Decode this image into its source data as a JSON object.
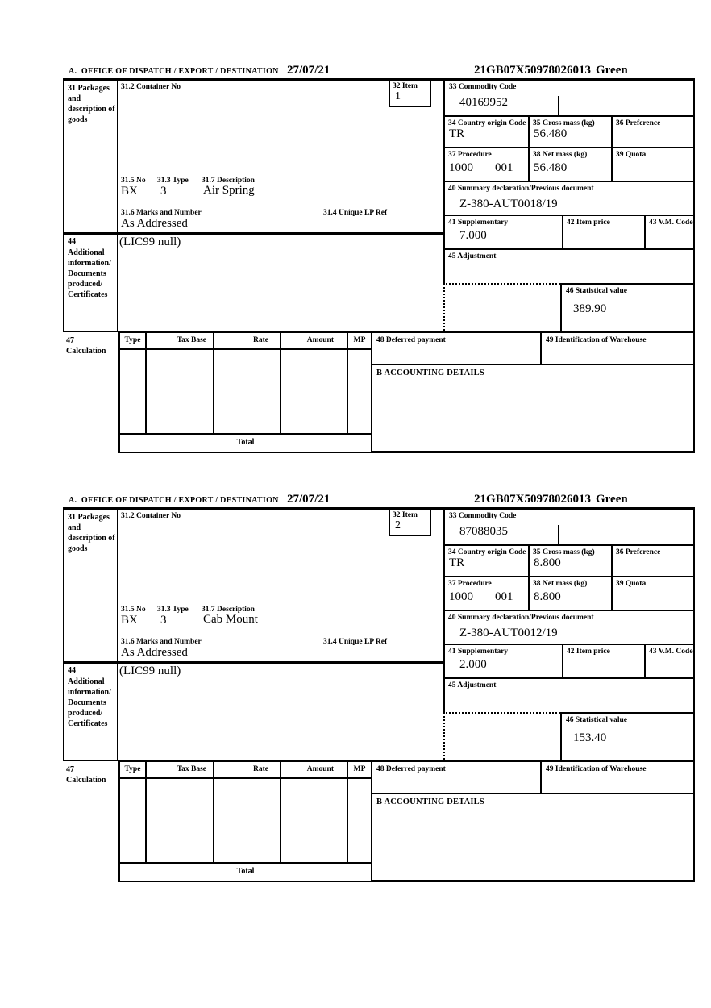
{
  "labels": {
    "office": "A.  OFFICE OF DISPATCH / EXPORT / DESTINATION",
    "box31": "31 Packages and description of goods",
    "box31_2": "31.2 Container No",
    "box32": "32 Item",
    "box33": "33 Commodity Code",
    "box34": "34 Country origin Code",
    "box35": "35 Gross mass (kg)",
    "box36": "36 Preference",
    "box37": "37 Procedure",
    "box38": "38 Net mass (kg)",
    "box39": "39 Quota",
    "box40": "40 Summary declaration/Previous document",
    "box41": "41 Supplementary",
    "box42": "42 Item price",
    "box43": "43 V.M. Code",
    "box31_5": "31.5 No",
    "box31_3": "31.3 Type",
    "box31_7": "31.7 Description",
    "box31_6": "31.6 Marks and Number",
    "box31_4": "31.4 Unique LP Ref",
    "box44_no": "44",
    "box44_text": "Additional information/ Documents produced/ Certificates",
    "box45": "45 Adjustment",
    "box46": "46 Statistical value",
    "box47": "47 Calculation",
    "box48": "48 Deferred payment",
    "box49": "49 Identification of Warehouse",
    "boxB": "B ACCOUNTING DETAILS",
    "calc_type": "Type",
    "calc_tax_base": "Tax Base",
    "calc_rate": "Rate",
    "calc_amount": "Amount",
    "calc_mp": "MP",
    "calc_total": "Total"
  },
  "forms": [
    {
      "date": "27/07/21",
      "mrn": "21GB07X50978026013",
      "routing": "Green",
      "item_no": "1",
      "commodity_code": "40169952",
      "country_origin_code": "TR",
      "gross_mass_kg": "56.480",
      "procedure": "1000",
      "procedure_part2": "001",
      "net_mass_kg": "56.480",
      "summary_declaration": "Z-380-AUT0018/19",
      "supplementary": "7.000",
      "package_no": "BX",
      "package_type": "3",
      "description": "Air Spring",
      "marks_and_number": "As Addressed",
      "additional_information": "(LIC99 null)",
      "statistical_value": "389.90"
    },
    {
      "date": "27/07/21",
      "mrn": "21GB07X50978026013",
      "routing": "Green",
      "item_no": "2",
      "commodity_code": "87088035",
      "country_origin_code": "TR",
      "gross_mass_kg": "8.800",
      "procedure": "1000",
      "procedure_part2": "001",
      "net_mass_kg": "8.800",
      "summary_declaration": "Z-380-AUT0012/19",
      "supplementary": "2.000",
      "package_no": "BX",
      "package_type": "3",
      "description": "Cab Mount",
      "marks_and_number": "As Addressed",
      "additional_information": "(LIC99 null)",
      "statistical_value": "153.40"
    }
  ]
}
